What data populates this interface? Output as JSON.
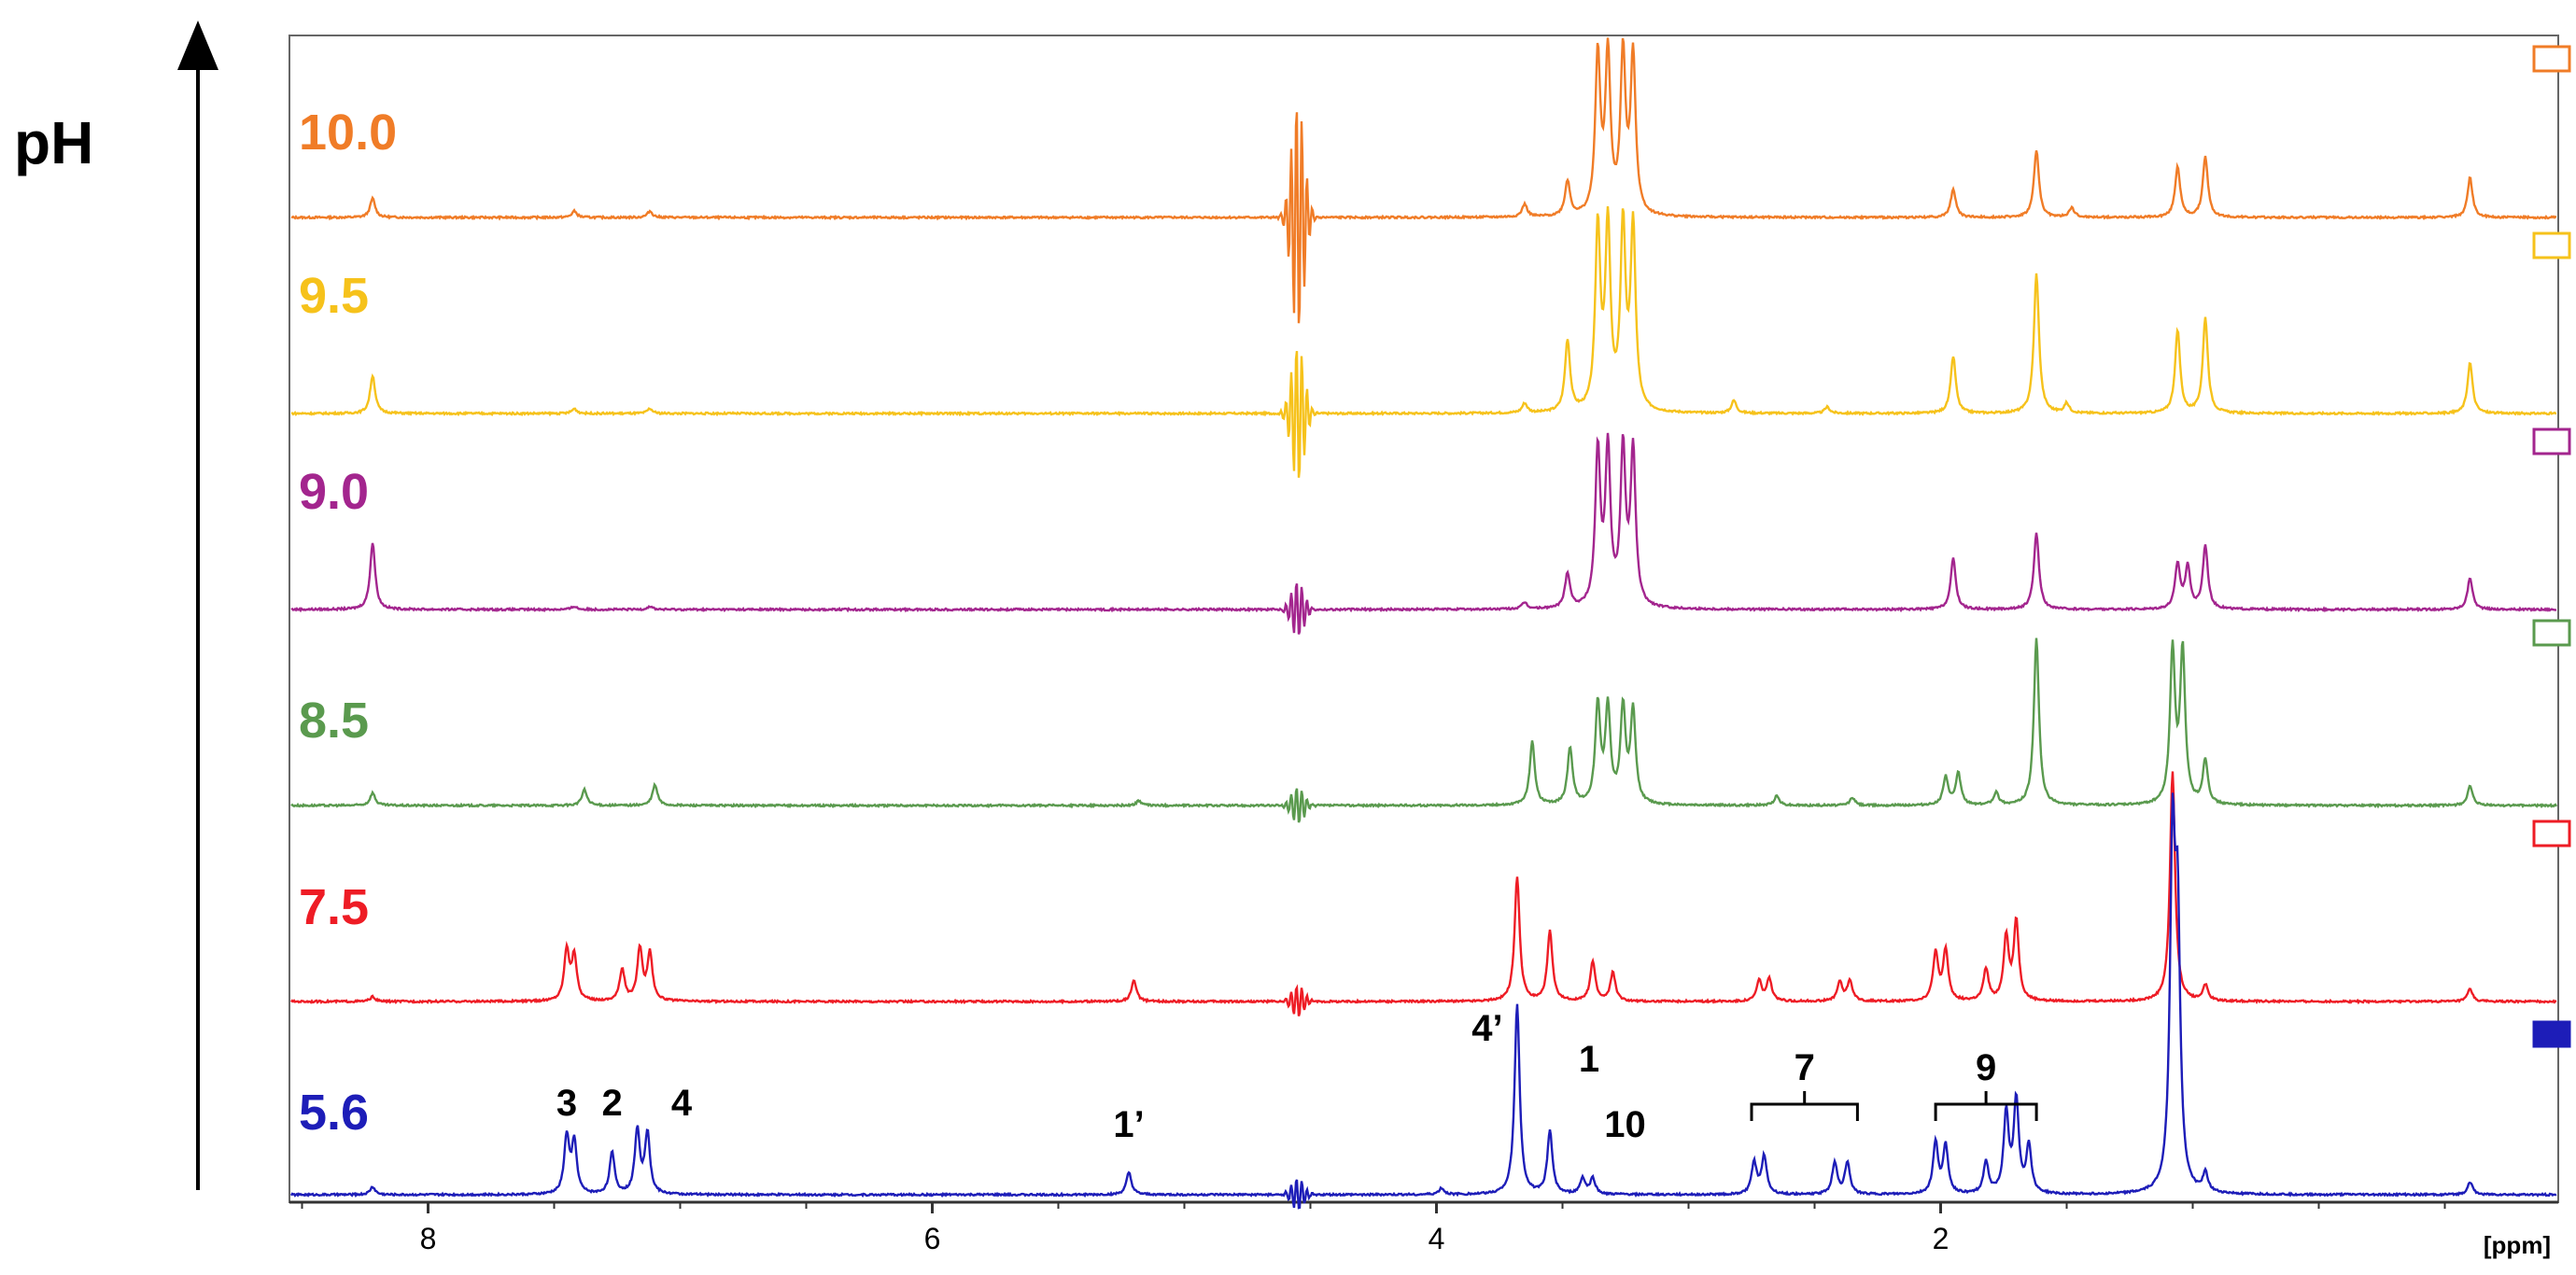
{
  "chart_data": {
    "type": "line",
    "title": "",
    "stack_axis_label": "pH",
    "xlabel": "[ppm]",
    "xlim": [
      8.55,
      -0.45
    ],
    "x_ticks": [
      8,
      6,
      4,
      2
    ],
    "x_tick_labels": [
      "8",
      "6",
      "4",
      "2"
    ],
    "stacked": true,
    "series": [
      {
        "name": "10.0",
        "color": "#F07C27",
        "legend_filled": false,
        "peaks": [
          {
            "x": 8.22,
            "h": 0.12
          },
          {
            "x": 7.42,
            "h": 0.04
          },
          {
            "x": 7.12,
            "h": 0.04
          },
          {
            "x": 4.55,
            "h": 0.75,
            "solvent": true
          },
          {
            "x": 3.65,
            "h": 0.08
          },
          {
            "x": 3.48,
            "h": 0.22
          },
          {
            "x": 3.36,
            "h": 1.0
          },
          {
            "x": 3.32,
            "h": 1.0
          },
          {
            "x": 3.26,
            "h": 1.0
          },
          {
            "x": 3.22,
            "h": 1.0
          },
          {
            "x": 1.95,
            "h": 0.18
          },
          {
            "x": 1.62,
            "h": 0.42
          },
          {
            "x": 1.48,
            "h": 0.06
          },
          {
            "x": 1.06,
            "h": 0.32
          },
          {
            "x": 0.95,
            "h": 0.38
          },
          {
            "x": -0.1,
            "h": 0.25
          }
        ]
      },
      {
        "name": "9.5",
        "color": "#F6C21B",
        "legend_filled": false,
        "peaks": [
          {
            "x": 8.22,
            "h": 0.24
          },
          {
            "x": 7.42,
            "h": 0.03
          },
          {
            "x": 7.12,
            "h": 0.03
          },
          {
            "x": 4.55,
            "h": 0.45,
            "solvent": true
          },
          {
            "x": 3.65,
            "h": 0.06
          },
          {
            "x": 3.48,
            "h": 0.45
          },
          {
            "x": 3.36,
            "h": 1.15
          },
          {
            "x": 3.32,
            "h": 1.15
          },
          {
            "x": 3.26,
            "h": 1.15
          },
          {
            "x": 3.22,
            "h": 1.15
          },
          {
            "x": 2.82,
            "h": 0.08
          },
          {
            "x": 2.45,
            "h": 0.04
          },
          {
            "x": 1.95,
            "h": 0.36
          },
          {
            "x": 1.62,
            "h": 0.88
          },
          {
            "x": 1.5,
            "h": 0.06
          },
          {
            "x": 1.06,
            "h": 0.52
          },
          {
            "x": 0.95,
            "h": 0.6
          },
          {
            "x": -0.1,
            "h": 0.32
          }
        ]
      },
      {
        "name": "9.0",
        "color": "#A3258E",
        "legend_filled": false,
        "peaks": [
          {
            "x": 8.22,
            "h": 0.42
          },
          {
            "x": 7.42,
            "h": 0.02
          },
          {
            "x": 7.12,
            "h": 0.02
          },
          {
            "x": 4.55,
            "h": 0.18,
            "solvent": true
          },
          {
            "x": 3.65,
            "h": 0.04
          },
          {
            "x": 3.48,
            "h": 0.22
          },
          {
            "x": 3.36,
            "h": 0.98
          },
          {
            "x": 3.32,
            "h": 0.98
          },
          {
            "x": 3.26,
            "h": 0.98
          },
          {
            "x": 3.22,
            "h": 0.98
          },
          {
            "x": 1.95,
            "h": 0.32
          },
          {
            "x": 1.62,
            "h": 0.48
          },
          {
            "x": 1.06,
            "h": 0.28
          },
          {
            "x": 1.02,
            "h": 0.26
          },
          {
            "x": 0.95,
            "h": 0.4
          },
          {
            "x": -0.1,
            "h": 0.2
          }
        ]
      },
      {
        "name": "8.5",
        "color": "#5A9A4E",
        "legend_filled": false,
        "peaks": [
          {
            "x": 8.22,
            "h": 0.08
          },
          {
            "x": 7.38,
            "h": 0.1
          },
          {
            "x": 7.1,
            "h": 0.13
          },
          {
            "x": 5.18,
            "h": 0.03
          },
          {
            "x": 4.55,
            "h": 0.12,
            "solvent": true
          },
          {
            "x": 3.62,
            "h": 0.4
          },
          {
            "x": 3.47,
            "h": 0.36
          },
          {
            "x": 3.36,
            "h": 0.62
          },
          {
            "x": 3.32,
            "h": 0.6
          },
          {
            "x": 3.26,
            "h": 0.6
          },
          {
            "x": 3.22,
            "h": 0.58
          },
          {
            "x": 2.65,
            "h": 0.06
          },
          {
            "x": 2.35,
            "h": 0.05
          },
          {
            "x": 1.98,
            "h": 0.18
          },
          {
            "x": 1.93,
            "h": 0.2
          },
          {
            "x": 1.78,
            "h": 0.08
          },
          {
            "x": 1.62,
            "h": 1.05
          },
          {
            "x": 1.08,
            "h": 0.96
          },
          {
            "x": 1.04,
            "h": 0.96
          },
          {
            "x": 0.95,
            "h": 0.28
          },
          {
            "x": -0.1,
            "h": 0.12
          }
        ]
      },
      {
        "name": "7.5",
        "color": "#EE1C25",
        "legend_filled": false,
        "peaks": [
          {
            "x": 8.22,
            "h": 0.03
          },
          {
            "x": 7.45,
            "h": 0.32
          },
          {
            "x": 7.42,
            "h": 0.28
          },
          {
            "x": 7.23,
            "h": 0.2
          },
          {
            "x": 7.16,
            "h": 0.33
          },
          {
            "x": 7.12,
            "h": 0.3
          },
          {
            "x": 5.2,
            "h": 0.13
          },
          {
            "x": 4.55,
            "h": 0.1,
            "solvent": true
          },
          {
            "x": 3.68,
            "h": 0.78
          },
          {
            "x": 3.55,
            "h": 0.44
          },
          {
            "x": 3.38,
            "h": 0.25
          },
          {
            "x": 3.3,
            "h": 0.18
          },
          {
            "x": 2.72,
            "h": 0.13
          },
          {
            "x": 2.68,
            "h": 0.14
          },
          {
            "x": 2.4,
            "h": 0.12
          },
          {
            "x": 2.36,
            "h": 0.13
          },
          {
            "x": 2.02,
            "h": 0.3
          },
          {
            "x": 1.98,
            "h": 0.32
          },
          {
            "x": 1.82,
            "h": 0.2
          },
          {
            "x": 1.74,
            "h": 0.4
          },
          {
            "x": 1.7,
            "h": 0.5
          },
          {
            "x": 1.08,
            "h": 1.45
          },
          {
            "x": 0.95,
            "h": 0.1
          },
          {
            "x": -0.1,
            "h": 0.08
          }
        ]
      },
      {
        "name": "5.6",
        "color": "#1D1DB8",
        "legend_filled": true,
        "peaks": [
          {
            "x": 8.22,
            "h": 0.05
          },
          {
            "x": 7.45,
            "h": 0.36
          },
          {
            "x": 7.42,
            "h": 0.32
          },
          {
            "x": 7.27,
            "h": 0.26
          },
          {
            "x": 7.17,
            "h": 0.4
          },
          {
            "x": 7.13,
            "h": 0.38
          },
          {
            "x": 5.22,
            "h": 0.14
          },
          {
            "x": 4.55,
            "h": 0.1,
            "solvent": true
          },
          {
            "x": 3.98,
            "h": 0.04
          },
          {
            "x": 3.68,
            "h": 1.2
          },
          {
            "x": 3.55,
            "h": 0.4
          },
          {
            "x": 3.42,
            "h": 0.1
          },
          {
            "x": 3.38,
            "h": 0.1
          },
          {
            "x": 2.74,
            "h": 0.2
          },
          {
            "x": 2.7,
            "h": 0.24
          },
          {
            "x": 2.42,
            "h": 0.2
          },
          {
            "x": 2.37,
            "h": 0.2
          },
          {
            "x": 2.02,
            "h": 0.32
          },
          {
            "x": 1.98,
            "h": 0.3
          },
          {
            "x": 1.82,
            "h": 0.2
          },
          {
            "x": 1.74,
            "h": 0.5
          },
          {
            "x": 1.7,
            "h": 0.58
          },
          {
            "x": 1.65,
            "h": 0.3
          },
          {
            "x": 1.08,
            "h": 2.1
          },
          {
            "x": 1.06,
            "h": 1.6
          },
          {
            "x": 0.95,
            "h": 0.12
          },
          {
            "x": -0.1,
            "h": 0.08
          }
        ]
      }
    ],
    "annotations": [
      {
        "label": "3",
        "x": 7.45
      },
      {
        "label": "2",
        "x": 7.27
      },
      {
        "label": "4",
        "x": 7.15,
        "offset": "right"
      },
      {
        "label": "1’",
        "x": 5.22
      },
      {
        "label": "4’",
        "x": 3.68,
        "offset": "high"
      },
      {
        "label": "1",
        "x": 3.55,
        "offset": "right"
      },
      {
        "label": "10",
        "x": 3.4,
        "offset": "right-low"
      },
      {
        "label": "7",
        "x_range": [
          2.75,
          2.33
        ],
        "bracket": true
      },
      {
        "label": "9",
        "x_range": [
          2.02,
          1.62
        ],
        "bracket": true
      }
    ]
  }
}
